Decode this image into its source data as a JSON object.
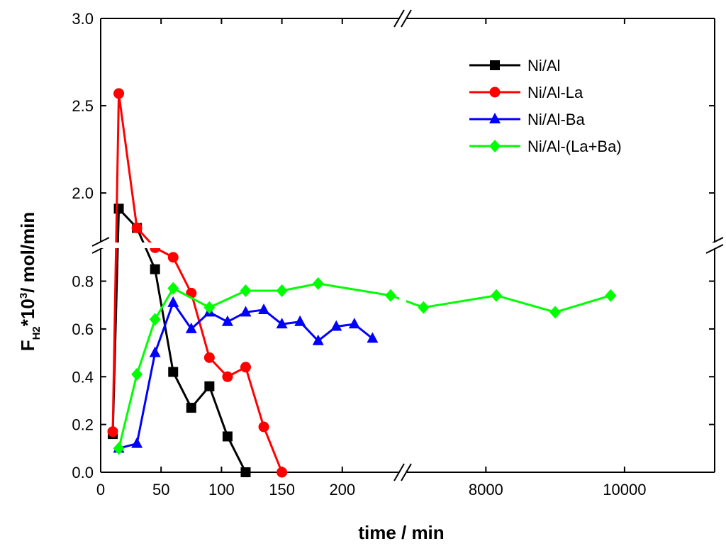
{
  "chart_data": {
    "type": "line",
    "xlabel": "time / min",
    "ylabel": {
      "main": "F",
      "subscript": "H2",
      "mid": "*10",
      "superscript": "3",
      "tail": "/ mol/min"
    },
    "x_axis_segments": [
      {
        "range": [
          0,
          250
        ],
        "ticks": [
          0,
          50,
          100,
          150,
          200
        ]
      },
      {
        "range": [
          6800,
          11300
        ],
        "ticks": [
          8000,
          10000
        ]
      }
    ],
    "x_tick_labels": [
      "0",
      "50",
      "100",
      "150",
      "200",
      "8000",
      "10000"
    ],
    "y_axis_segments": [
      {
        "range": [
          0,
          0.95
        ],
        "ticks": [
          0.0,
          0.2,
          0.4,
          0.6,
          0.8
        ]
      },
      {
        "range": [
          1.7,
          3.0
        ],
        "ticks": [
          2.0,
          2.5,
          3.0
        ]
      }
    ],
    "y_tick_labels": [
      "0.0",
      "0.2",
      "0.4",
      "0.6",
      "0.8",
      "2.0",
      "2.5",
      "3.0"
    ],
    "axis_break_marks": true,
    "grid": false,
    "legend_position": "top-right",
    "series": [
      {
        "name": "Ni/Al",
        "color": "#000000",
        "marker": "square",
        "x": [
          10,
          15,
          30,
          45,
          60,
          75,
          90,
          105,
          120
        ],
        "y": [
          0.16,
          1.91,
          1.8,
          0.85,
          0.42,
          0.27,
          0.36,
          0.15,
          0.0
        ]
      },
      {
        "name": "Ni/Al-La",
        "color": "#ff0000",
        "marker": "circle",
        "x": [
          10,
          15,
          30,
          45,
          60,
          75,
          90,
          105,
          120,
          135,
          150
        ],
        "y": [
          0.17,
          2.57,
          1.8,
          0.94,
          0.9,
          0.75,
          0.48,
          0.4,
          0.44,
          0.19,
          0.0
        ]
      },
      {
        "name": "Ni/Al-Ba",
        "color": "#0000ff",
        "marker": "triangle",
        "x": [
          15,
          30,
          45,
          60,
          75,
          90,
          105,
          120,
          135,
          150,
          165,
          180,
          195,
          210,
          225
        ],
        "y": [
          0.1,
          0.12,
          0.5,
          0.71,
          0.6,
          0.67,
          0.63,
          0.67,
          0.68,
          0.62,
          0.63,
          0.55,
          0.61,
          0.62,
          0.56
        ]
      },
      {
        "name": "Ni/Al-(La+Ba)",
        "color": "#00ff00",
        "marker": "diamond",
        "x": [
          15,
          30,
          45,
          60,
          90,
          120,
          150,
          180,
          240,
          7100,
          8150,
          9000,
          9800
        ],
        "y": [
          0.1,
          0.41,
          0.64,
          0.77,
          0.69,
          0.76,
          0.76,
          0.79,
          0.74,
          0.69,
          0.74,
          0.67,
          0.74
        ]
      }
    ]
  }
}
